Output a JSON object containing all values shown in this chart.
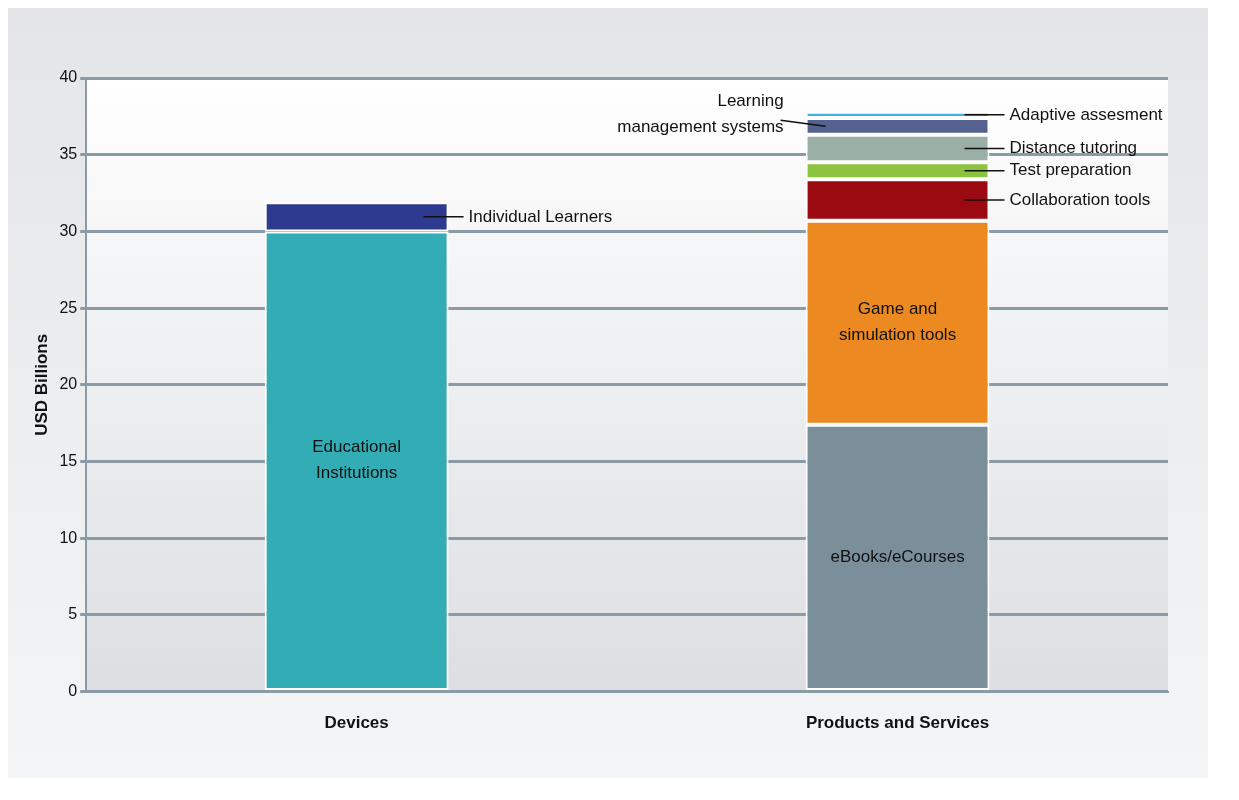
{
  "chart_data": {
    "type": "bar",
    "stacked": true,
    "ylabel": "USD Billions",
    "categories": [
      "Devices",
      "Products and Services"
    ],
    "series": [
      {
        "name": "Educational Institutions",
        "color": "#33adb5",
        "values": [
          30.0,
          null
        ]
      },
      {
        "name": "Individual Learners",
        "color": "#2e3a8f",
        "values": [
          1.9,
          null
        ]
      },
      {
        "name": "eBooks/eCourses",
        "color": "#7b8f9a",
        "values": [
          null,
          17.4
        ]
      },
      {
        "name": "Game and simulation tools",
        "color": "#ec8a21",
        "values": [
          null,
          13.3
        ]
      },
      {
        "name": "Collaboration tools",
        "color": "#9b0a10",
        "values": [
          null,
          2.7
        ]
      },
      {
        "name": "Test preparation",
        "color": "#8cc43f",
        "values": [
          null,
          1.1
        ]
      },
      {
        "name": "Distance tutoring",
        "color": "#9aafa6",
        "values": [
          null,
          1.8
        ]
      },
      {
        "name": "Learning management systems",
        "color": "#55618f",
        "values": [
          null,
          1.1
        ]
      },
      {
        "name": "Adaptive assesment",
        "color": "#3fb0e0",
        "values": [
          null,
          0.4
        ]
      }
    ],
    "ylim": [
      0,
      40
    ],
    "yticks": [
      0,
      5,
      10,
      15,
      20,
      25,
      30,
      35,
      40
    ],
    "grid": "y",
    "legend": false
  }
}
